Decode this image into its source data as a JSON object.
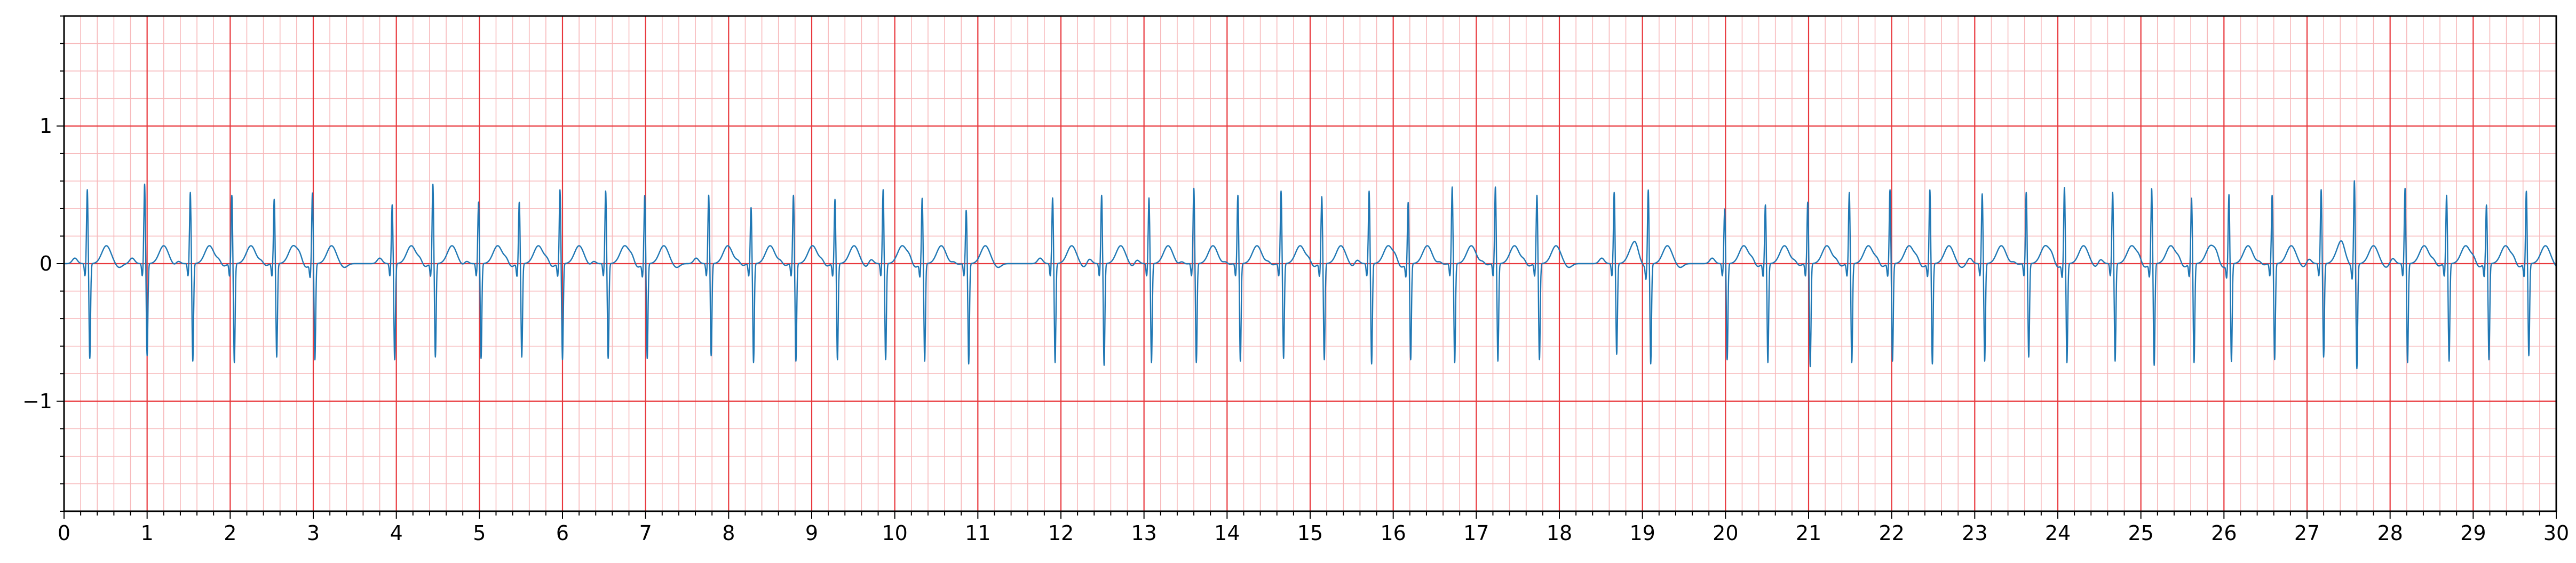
{
  "chart_data": {
    "type": "line",
    "title": "",
    "xlabel": "",
    "ylabel": "",
    "xlim": [
      0,
      30
    ],
    "ylim": [
      -1.8,
      1.8
    ],
    "grid": true,
    "grid_major_color": "#e8383d",
    "grid_minor_color": "#f7b9bb",
    "line_color": "#1f77b4",
    "x_major_step": 1,
    "x_minor_step": 0.2,
    "y_major_step": 1,
    "y_minor_step": 0.2,
    "x_ticks": [
      "0",
      "1",
      "2",
      "3",
      "4",
      "5",
      "6",
      "7",
      "8",
      "9",
      "10",
      "11",
      "12",
      "13",
      "14",
      "15",
      "16",
      "17",
      "18",
      "19",
      "20",
      "21",
      "22",
      "23",
      "24",
      "25",
      "26",
      "27",
      "28",
      "29",
      "30"
    ],
    "y_ticks": [
      {
        "value": 1,
        "label": "1"
      },
      {
        "value": 0,
        "label": "0"
      },
      {
        "value": -1,
        "label": "−1"
      }
    ],
    "series": [
      {
        "beat_times": [
          0.28,
          0.97,
          1.52,
          2.02,
          2.53,
          2.99,
          3.95,
          4.44,
          4.99,
          5.48,
          5.97,
          6.52,
          6.99,
          7.76,
          8.27,
          8.78,
          9.28,
          9.86,
          10.33,
          10.86,
          11.9,
          12.49,
          13.06,
          13.6,
          14.13,
          14.65,
          15.14,
          15.71,
          16.18,
          16.71,
          17.23,
          17.73,
          18.66,
          19.07,
          19.99,
          20.48,
          20.99,
          21.49,
          21.98,
          22.46,
          23.09,
          23.62,
          24.08,
          24.66,
          25.13,
          25.61,
          26.06,
          26.58,
          27.17,
          27.57,
          28.18,
          28.68,
          29.16,
          29.64
        ],
        "r_amplitudes": [
          0.54,
          0.58,
          0.52,
          0.5,
          0.47,
          0.52,
          0.43,
          0.58,
          0.45,
          0.45,
          0.54,
          0.53,
          0.5,
          0.5,
          0.41,
          0.5,
          0.47,
          0.54,
          0.48,
          0.39,
          0.48,
          0.5,
          0.48,
          0.55,
          0.5,
          0.53,
          0.49,
          0.53,
          0.45,
          0.56,
          0.56,
          0.5,
          0.52,
          0.56,
          0.4,
          0.43,
          0.45,
          0.52,
          0.54,
          0.54,
          0.51,
          0.52,
          0.56,
          0.52,
          0.55,
          0.48,
          0.51,
          0.5,
          0.54,
          0.63,
          0.55,
          0.5,
          0.43,
          0.53
        ],
        "s_amplitudes": [
          -0.69,
          -0.67,
          -0.71,
          -0.72,
          -0.68,
          -0.7,
          -0.7,
          -0.68,
          -0.69,
          -0.68,
          -0.7,
          -0.69,
          -0.69,
          -0.67,
          -0.72,
          -0.71,
          -0.7,
          -0.7,
          -0.71,
          -0.73,
          -0.72,
          -0.74,
          -0.72,
          -0.72,
          -0.71,
          -0.69,
          -0.7,
          -0.73,
          -0.7,
          -0.72,
          -0.71,
          -0.7,
          -0.66,
          -0.72,
          -0.7,
          -0.72,
          -0.75,
          -0.72,
          -0.71,
          -0.73,
          -0.71,
          -0.68,
          -0.72,
          -0.71,
          -0.74,
          -0.72,
          -0.71,
          -0.7,
          -0.68,
          -0.75,
          -0.72,
          -0.71,
          -0.7,
          -0.67
        ],
        "t_amplitude": 0.13
      }
    ]
  }
}
